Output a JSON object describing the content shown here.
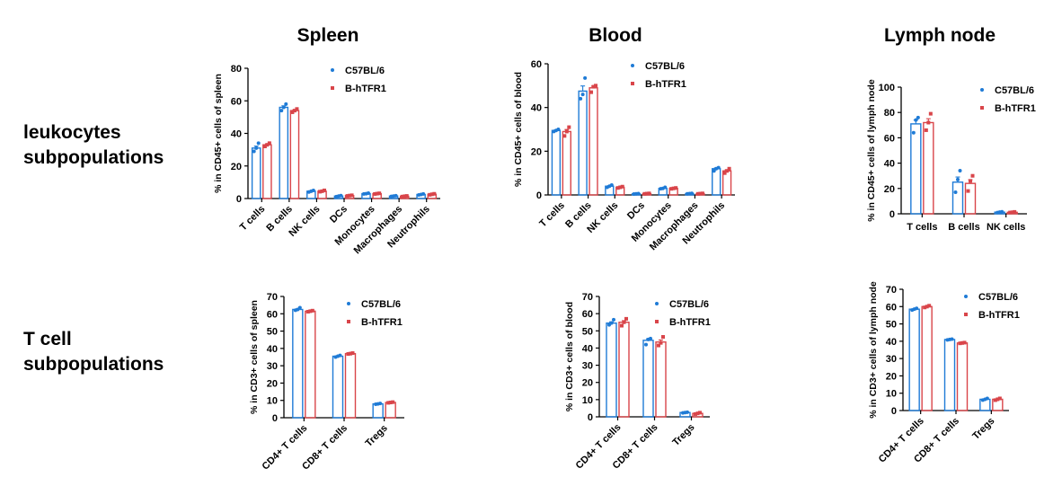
{
  "column_titles": [
    "Spleen",
    "Blood",
    "Lymph node"
  ],
  "row_labels": [
    "leukocytes\nsubpopulations",
    "T cell\nsubpopulations"
  ],
  "colors": {
    "C57BL/6": "#1f7bd6",
    "B-hTFR1": "#d9454a"
  },
  "chart_data": [
    {
      "type": "bar",
      "ylabel": "% in CD45+ cells of spleen",
      "ylim": [
        0,
        80
      ],
      "yticks": [
        "0",
        "20",
        "40",
        "60",
        "80"
      ],
      "categories": [
        "T cells",
        "B cells",
        "NK cells",
        "DCs",
        "Monocytes",
        "Macrophages",
        "Neutrophils"
      ],
      "series": [
        {
          "name": "C57BL/6",
          "values": [
            31,
            56,
            4.5,
            1.5,
            3,
            1.5,
            2.5
          ],
          "points": [
            [
              29,
              31,
              34
            ],
            [
              54,
              56,
              58
            ],
            [
              4,
              4.5,
              5
            ],
            [
              1.2,
              1.5,
              1.8
            ],
            [
              2.8,
              3,
              3.3
            ],
            [
              1.3,
              1.5,
              1.7
            ],
            [
              2.2,
              2.5,
              2.8
            ]
          ]
        },
        {
          "name": "B-hTFR1",
          "values": [
            33,
            54,
            4.5,
            1.8,
            3,
            1.4,
            2.6
          ],
          "points": [
            [
              32,
              33,
              34
            ],
            [
              53,
              54,
              55
            ],
            [
              4.2,
              4.5,
              5
            ],
            [
              1.6,
              1.8,
              2
            ],
            [
              2.8,
              3,
              3.2
            ],
            [
              1.2,
              1.4,
              1.6
            ],
            [
              2.3,
              2.6,
              2.9
            ]
          ]
        }
      ]
    },
    {
      "type": "bar",
      "ylabel": "% in CD45+ cells of blood",
      "ylim": [
        0,
        60
      ],
      "yticks": [
        "0",
        "20",
        "40",
        "60"
      ],
      "categories": [
        "T cells",
        "B cells",
        "NK cells",
        "DCs",
        "Monocytes",
        "Macrophages",
        "Neutrophils"
      ],
      "series": [
        {
          "name": "C57BL/6",
          "values": [
            29.5,
            47.5,
            4,
            0.5,
            3,
            0.6,
            12
          ],
          "points": [
            [
              29,
              29.5,
              30
            ],
            [
              44,
              46,
              53.5
            ],
            [
              3.5,
              4,
              4.5
            ],
            [
              0.4,
              0.5,
              0.6
            ],
            [
              2.8,
              3,
              3.5
            ],
            [
              0.5,
              0.6,
              0.7
            ],
            [
              11,
              12,
              12.5
            ]
          ]
        },
        {
          "name": "B-hTFR1",
          "values": [
            29,
            49,
            3.5,
            0.6,
            3,
            0.6,
            11
          ],
          "points": [
            [
              27,
              29,
              31
            ],
            [
              47,
              49.5,
              50
            ],
            [
              3.2,
              3.5,
              3.8
            ],
            [
              0.5,
              0.6,
              0.7
            ],
            [
              2.8,
              3,
              3.2
            ],
            [
              0.5,
              0.6,
              0.7
            ],
            [
              10,
              11,
              12
            ]
          ]
        }
      ]
    },
    {
      "type": "bar",
      "ylabel": "% in CD45+ cells of lymph node",
      "ylim": [
        0,
        100
      ],
      "yticks": [
        "0",
        "20",
        "40",
        "60",
        "80",
        "100"
      ],
      "categories": [
        "T cells",
        "B cells",
        "NK cells"
      ],
      "series": [
        {
          "name": "C57BL/6",
          "values": [
            71,
            25,
            1.3
          ],
          "points": [
            [
              64,
              74,
              76
            ],
            [
              17,
              27,
              34
            ],
            [
              1,
              1.3,
              1.6
            ]
          ]
        },
        {
          "name": "B-hTFR1",
          "values": [
            72,
            24,
            1.2
          ],
          "points": [
            [
              66,
              72,
              79
            ],
            [
              18,
              26,
              30
            ],
            [
              1,
              1.2,
              1.5
            ]
          ]
        }
      ]
    },
    {
      "type": "bar",
      "ylabel": "% in CD3+ cells of spleen",
      "ylim": [
        0,
        70
      ],
      "yticks": [
        "0",
        "10",
        "20",
        "30",
        "40",
        "50",
        "60",
        "70"
      ],
      "categories": [
        "CD4+ T cells",
        "CD8+ T cells",
        "Tregs"
      ],
      "series": [
        {
          "name": "C57BL/6",
          "values": [
            62.5,
            35.5,
            8
          ],
          "points": [
            [
              62,
              62.5,
              63.5
            ],
            [
              35,
              35.5,
              36
            ],
            [
              7.8,
              8,
              8.2
            ]
          ]
        },
        {
          "name": "B-hTFR1",
          "values": [
            61.5,
            37,
            8.8
          ],
          "points": [
            [
              61.2,
              61.5,
              61.8
            ],
            [
              36.8,
              37,
              37.3
            ],
            [
              8.6,
              8.8,
              9
            ]
          ]
        }
      ]
    },
    {
      "type": "bar",
      "ylabel": "% in CD3+ cells of blood",
      "ylim": [
        0,
        70
      ],
      "yticks": [
        "0",
        "10",
        "20",
        "30",
        "40",
        "50",
        "60",
        "70"
      ],
      "categories": [
        "CD4+ T cells",
        "CD8+ T cells",
        "Tregs"
      ],
      "series": [
        {
          "name": "C57BL/6",
          "values": [
            54.5,
            44.5,
            2.5
          ],
          "points": [
            [
              53.5,
              54.5,
              56.5
            ],
            [
              42,
              45,
              45.5
            ],
            [
              2.3,
              2.5,
              2.7
            ]
          ]
        },
        {
          "name": "B-hTFR1",
          "values": [
            55,
            43.5,
            2
          ],
          "points": [
            [
              53,
              55,
              57
            ],
            [
              41.5,
              43,
              46.5
            ],
            [
              1.6,
              2,
              2.4
            ]
          ]
        }
      ]
    },
    {
      "type": "bar",
      "ylabel": "% in CD3+ cells of lymph node",
      "ylim": [
        0,
        70
      ],
      "yticks": [
        "0",
        "10",
        "20",
        "30",
        "40",
        "50",
        "60",
        "70"
      ],
      "categories": [
        "CD4+ T cells",
        "CD8+ T cells",
        "Tregs"
      ],
      "series": [
        {
          "name": "C57BL/6",
          "values": [
            58.5,
            41,
            6.5
          ],
          "points": [
            [
              58,
              58.5,
              59
            ],
            [
              40.8,
              41,
              41.2
            ],
            [
              6,
              6.5,
              7
            ]
          ]
        },
        {
          "name": "B-hTFR1",
          "values": [
            60,
            39,
            6.5
          ],
          "points": [
            [
              59.5,
              60,
              60.5
            ],
            [
              38.8,
              39,
              39.2
            ],
            [
              6,
              6.5,
              7
            ]
          ]
        }
      ]
    }
  ]
}
